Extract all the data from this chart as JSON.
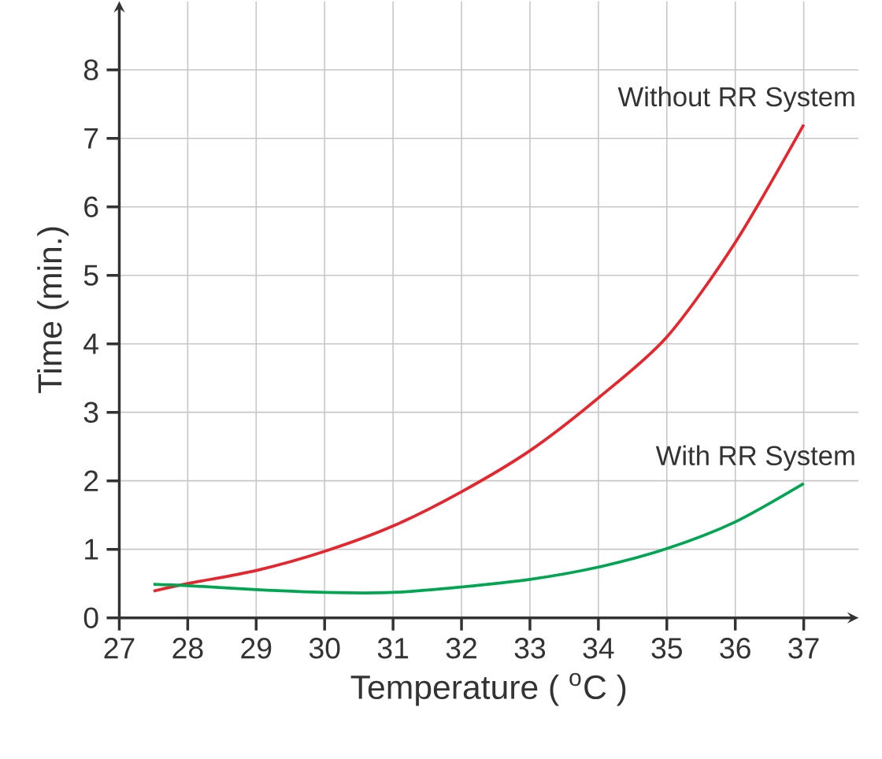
{
  "chart_data": {
    "type": "line",
    "xlabel": "Temperature ( $^{o}$C )",
    "ylabel": "Time (min.)",
    "xlim": [
      27,
      37.8
    ],
    "ylim": [
      0,
      9
    ],
    "xticks": [
      27,
      28,
      29,
      30,
      31,
      32,
      33,
      34,
      35,
      36,
      37
    ],
    "yticks": [
      0,
      1,
      2,
      3,
      4,
      5,
      6,
      7,
      8
    ],
    "grid": true,
    "series": [
      {
        "name": "Without RR System",
        "color": "#e8242c",
        "x": [
          27.5,
          28,
          29,
          30,
          31,
          32,
          33,
          34,
          35,
          36,
          37
        ],
        "values": [
          0.39,
          0.5,
          0.69,
          0.97,
          1.34,
          1.84,
          2.44,
          3.21,
          4.1,
          5.48,
          7.2
        ]
      },
      {
        "name": "With RR System",
        "color": "#00a651",
        "x": [
          27.5,
          28,
          29,
          30,
          31,
          32,
          33,
          34,
          35,
          36,
          37
        ],
        "values": [
          0.49,
          0.47,
          0.41,
          0.37,
          0.37,
          0.45,
          0.56,
          0.74,
          1.01,
          1.4,
          1.96
        ]
      }
    ]
  }
}
